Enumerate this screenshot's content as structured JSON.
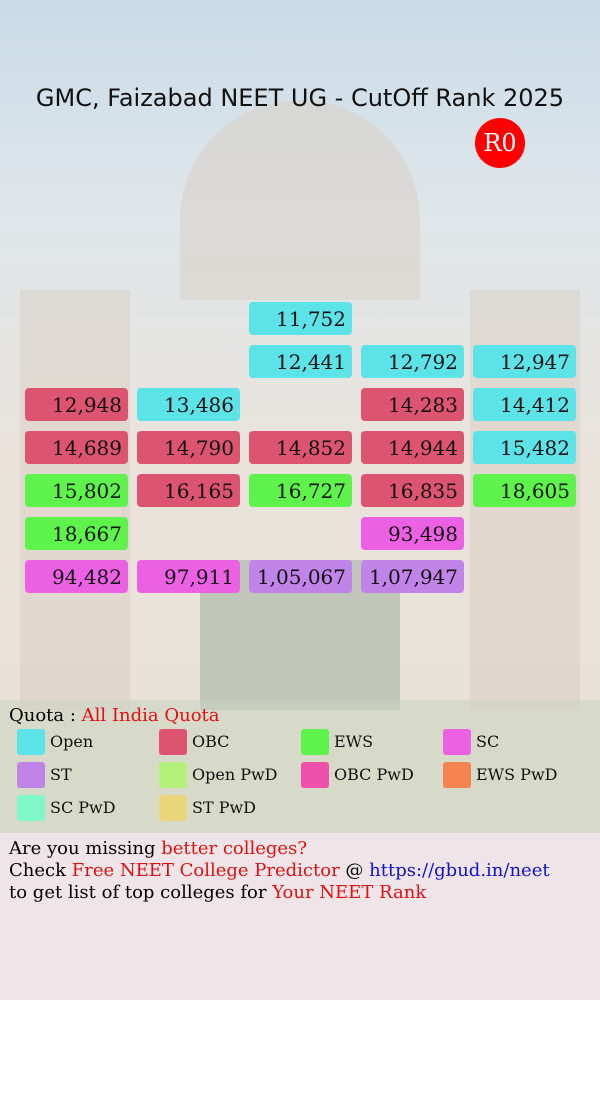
{
  "header": {
    "title": "GMC, Faizabad NEET UG - CutOff Rank 2025",
    "round": "R0"
  },
  "table": {
    "rows": [
      [
        null,
        null,
        {
          "rank": "11,752",
          "category": "Open"
        },
        null,
        null
      ],
      [
        null,
        null,
        {
          "rank": "12,441",
          "category": "Open"
        },
        {
          "rank": "12,792",
          "category": "Open"
        },
        {
          "rank": "12,947",
          "category": "Open"
        }
      ],
      [
        {
          "rank": "12,948",
          "category": "OBC"
        },
        {
          "rank": "13,486",
          "category": "Open"
        },
        null,
        {
          "rank": "14,283",
          "category": "OBC"
        },
        {
          "rank": "14,412",
          "category": "Open"
        }
      ],
      [
        {
          "rank": "14,689",
          "category": "OBC"
        },
        {
          "rank": "14,790",
          "category": "OBC"
        },
        {
          "rank": "14,852",
          "category": "OBC"
        },
        {
          "rank": "14,944",
          "category": "OBC"
        },
        {
          "rank": "15,482",
          "category": "Open"
        }
      ],
      [
        {
          "rank": "15,802",
          "category": "EWS"
        },
        {
          "rank": "16,165",
          "category": "OBC"
        },
        {
          "rank": "16,727",
          "category": "EWS"
        },
        {
          "rank": "16,835",
          "category": "OBC"
        },
        {
          "rank": "18,605",
          "category": "EWS"
        }
      ],
      [
        {
          "rank": "18,667",
          "category": "EWS"
        },
        null,
        null,
        {
          "rank": "93,498",
          "category": "SC"
        },
        null
      ],
      [
        {
          "rank": "94,482",
          "category": "SC"
        },
        {
          "rank": "97,911",
          "category": "SC"
        },
        {
          "rank": "1,05,067",
          "category": "ST"
        },
        {
          "rank": "1,07,947",
          "category": "ST"
        },
        null
      ]
    ]
  },
  "quota": {
    "label": "Quota :",
    "value": "All India Quota"
  },
  "legend": [
    {
      "name": "Open",
      "color": "#5ce3e8"
    },
    {
      "name": "OBC",
      "color": "#dc5470"
    },
    {
      "name": "EWS",
      "color": "#5ef34a"
    },
    {
      "name": "SC",
      "color": "#ec60e4"
    },
    {
      "name": "ST",
      "color": "#c083e8"
    },
    {
      "name": "Open PwD",
      "color": "#b5f07a"
    },
    {
      "name": "OBC PwD",
      "color": "#ee4fa8"
    },
    {
      "name": "EWS PwD",
      "color": "#f5834f"
    },
    {
      "name": "SC PwD",
      "color": "#7ff7c8"
    },
    {
      "name": "ST PwD",
      "color": "#ead67a"
    }
  ],
  "footer": {
    "lines": [
      [
        {
          "text": "Are you missing ",
          "color": "#000000"
        },
        {
          "text": "better colleges?",
          "color": "#e01010"
        }
      ],
      [
        {
          "text": "Check ",
          "color": "#000000"
        },
        {
          "text": "Free NEET College Predictor",
          "color": "#e01010"
        },
        {
          "text": " @ ",
          "color": "#000000"
        },
        {
          "text": "https://gbud.in/neet",
          "color": "#1010d0"
        }
      ],
      [
        {
          "text": "to get list of top colleges for ",
          "color": "#000000"
        },
        {
          "text": "Your NEET Rank",
          "color": "#e01010"
        }
      ]
    ]
  }
}
